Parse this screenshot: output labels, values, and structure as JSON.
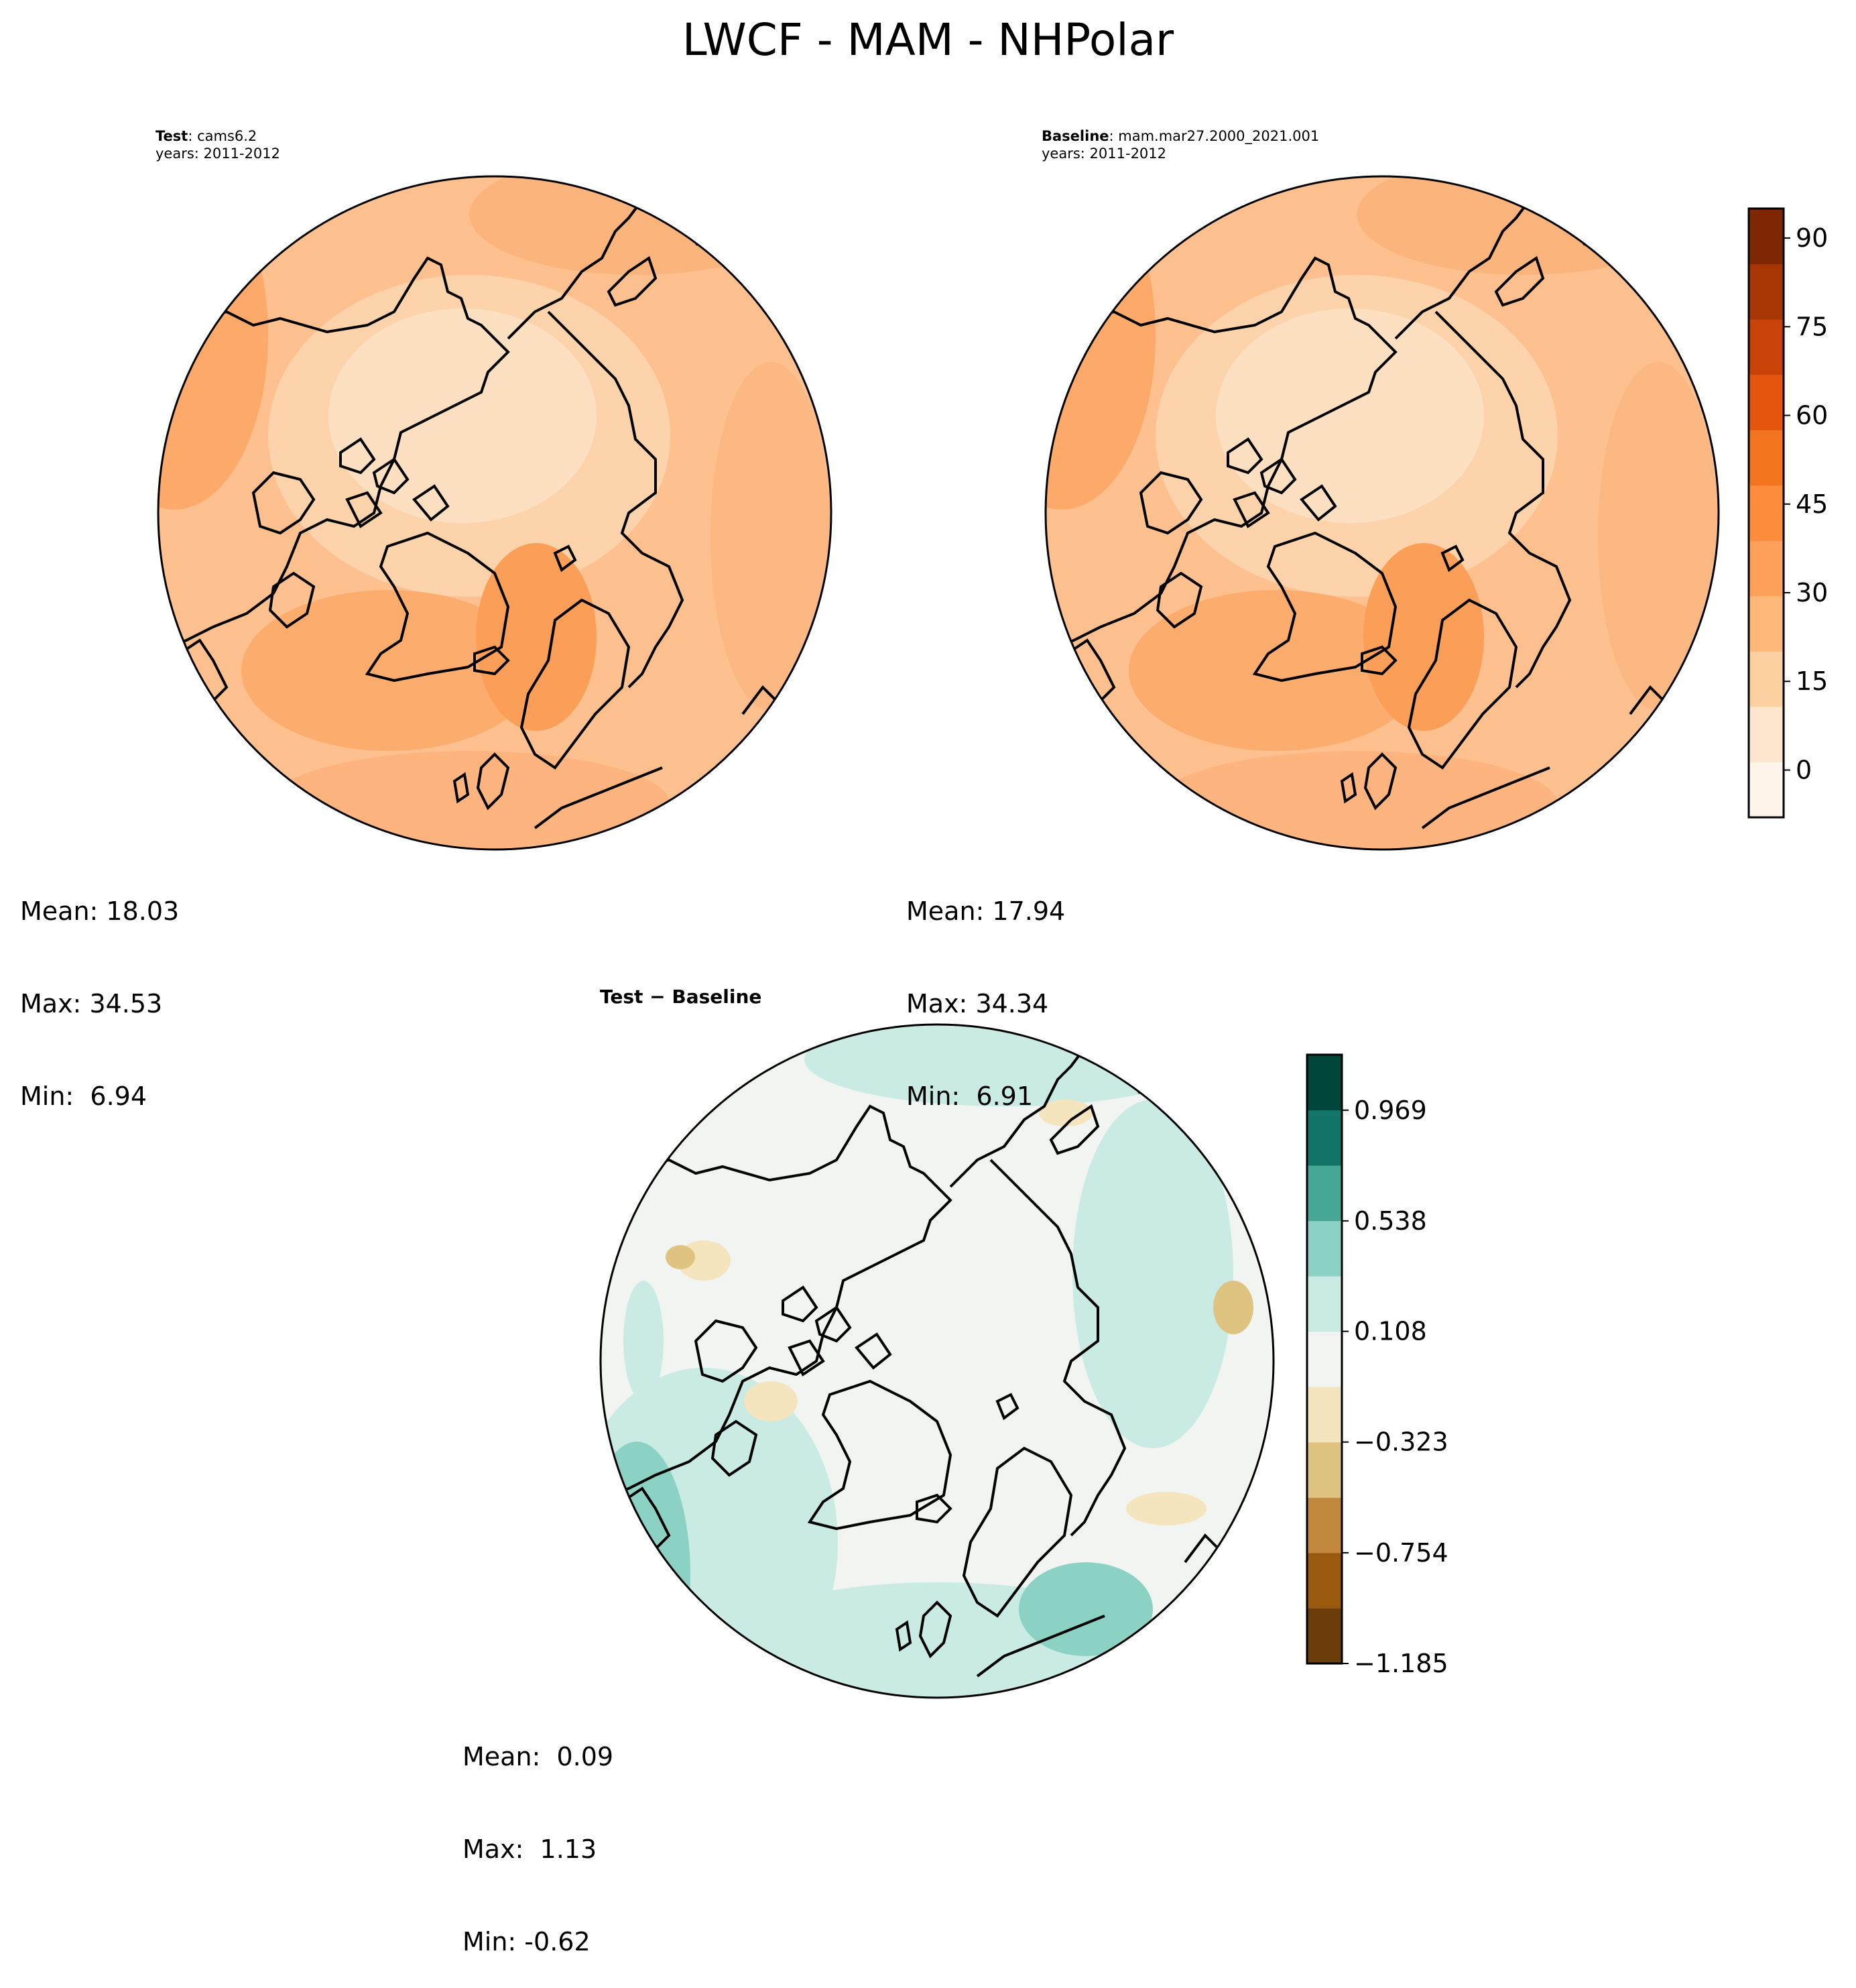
{
  "figure": {
    "title": "LWCF - MAM - NHPolar"
  },
  "panels": [
    {
      "id": "test",
      "label_bold": "Test",
      "label_rest": ": cams6.2",
      "years": "years: 2011-2012",
      "stats": {
        "mean": "Mean: 18.03",
        "max": "Max: 34.53",
        "min": "Min:  6.94"
      }
    },
    {
      "id": "baseline",
      "label_bold": "Baseline",
      "label_rest": ": mam.mar27.2000_2021.001",
      "years": "years: 2011-2012",
      "stats": {
        "mean": "Mean: 17.94",
        "max": "Max: 34.34",
        "min": "Min:  6.91"
      }
    },
    {
      "id": "diff",
      "label_bold": "Test − Baseline",
      "stats": {
        "mean": "Mean:  0.09",
        "max": "Max:  1.13",
        "min": "Min: -0.62"
      }
    }
  ],
  "colorbars": {
    "oranges": {
      "ticks": [
        "90",
        "75",
        "60",
        "45",
        "30",
        "15",
        "0"
      ],
      "tick_values": [
        90,
        75,
        60,
        45,
        30,
        15,
        0
      ],
      "range": [
        -8,
        95
      ],
      "colors": [
        "#fff5eb",
        "#fee6ce",
        "#fdd0a2",
        "#fdb87a",
        "#fda15a",
        "#fd8d3c",
        "#f47520",
        "#e6550d",
        "#c84309",
        "#a63603",
        "#7f2704"
      ]
    },
    "diverging": {
      "ticks": [
        "0.969",
        "0.538",
        "0.108",
        "−0.323",
        "−0.754",
        "−1.185"
      ],
      "tick_values": [
        0.969,
        0.538,
        0.108,
        -0.323,
        -0.754,
        -1.185
      ],
      "range": [
        -1.185,
        1.185
      ],
      "colors": [
        "#6b3d0a",
        "#99590f",
        "#c2893e",
        "#dfc381",
        "#f4e5bf",
        "#f2f4f2",
        "#c9ebe4",
        "#8bd2c5",
        "#46a797",
        "#137569",
        "#01463b"
      ]
    }
  }
}
